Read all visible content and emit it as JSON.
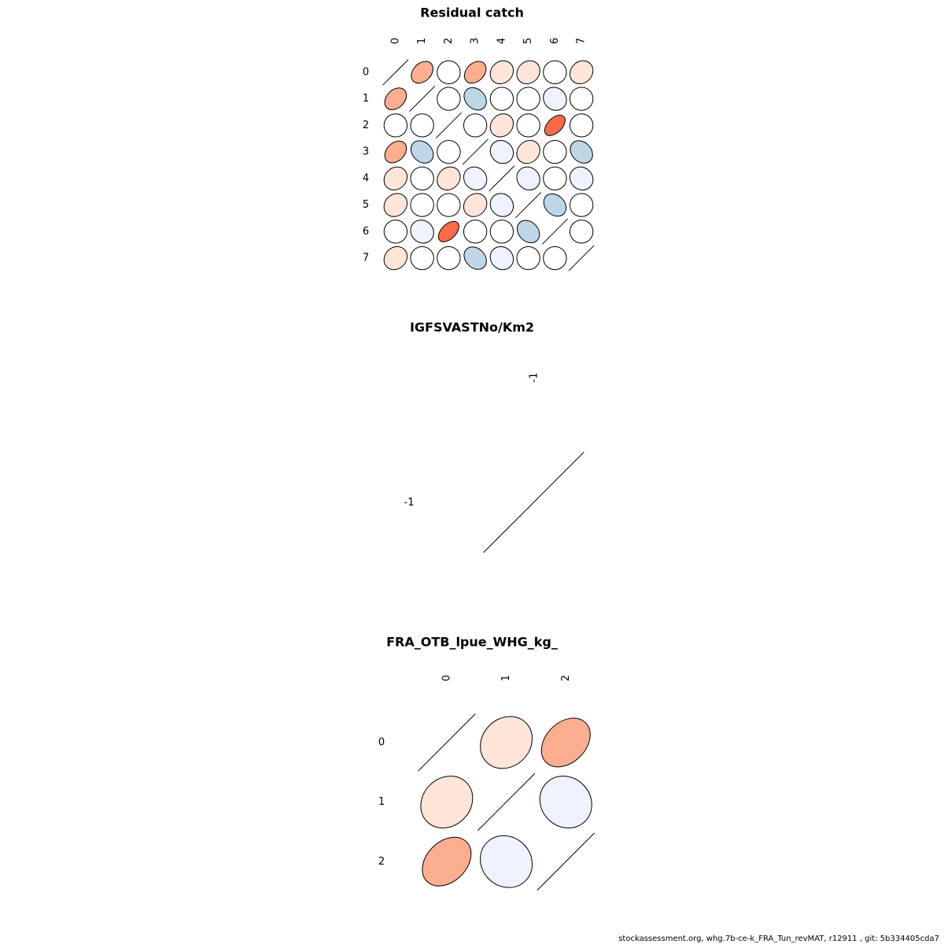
{
  "chart_data": [
    {
      "type": "heatmap",
      "title": "Residual catch",
      "labels": [
        "0",
        "1",
        "2",
        "3",
        "4",
        "5",
        "6",
        "7"
      ],
      "matrix": [
        [
          1.0,
          0.4,
          0.0,
          0.4,
          0.15,
          0.15,
          0.0,
          0.15
        ],
        [
          0.4,
          1.0,
          0.0,
          -0.3,
          0.0,
          0.0,
          -0.1,
          0.0
        ],
        [
          0.0,
          0.0,
          1.0,
          0.0,
          0.15,
          0.0,
          0.6,
          0.0
        ],
        [
          0.4,
          -0.3,
          0.0,
          1.0,
          -0.1,
          0.15,
          0.0,
          -0.3
        ],
        [
          0.15,
          0.0,
          0.15,
          -0.1,
          1.0,
          -0.1,
          0.0,
          -0.1
        ],
        [
          0.15,
          0.0,
          0.0,
          0.15,
          -0.1,
          1.0,
          -0.3,
          0.0
        ],
        [
          0.0,
          -0.1,
          0.6,
          0.0,
          0.0,
          -0.3,
          1.0,
          0.0
        ],
        [
          0.15,
          0.0,
          0.0,
          -0.3,
          -0.1,
          0.0,
          0.0,
          1.0
        ]
      ]
    },
    {
      "type": "heatmap",
      "title": "IGFSVASTNo/Km2",
      "labels": [
        "-1"
      ],
      "matrix": [
        [
          1.0
        ]
      ]
    },
    {
      "type": "heatmap",
      "title": "FRA_OTB_lpue_WHG_kg_",
      "labels": [
        "0",
        "1",
        "2"
      ],
      "matrix": [
        [
          1.0,
          0.15,
          0.4
        ],
        [
          0.15,
          1.0,
          -0.1
        ],
        [
          0.4,
          -0.1,
          1.0
        ]
      ]
    }
  ],
  "footer": "stockassessment.org, whg.7b-ce-k_FRA_Tun_revMAT, r12911 , git: 5b334405cda7"
}
